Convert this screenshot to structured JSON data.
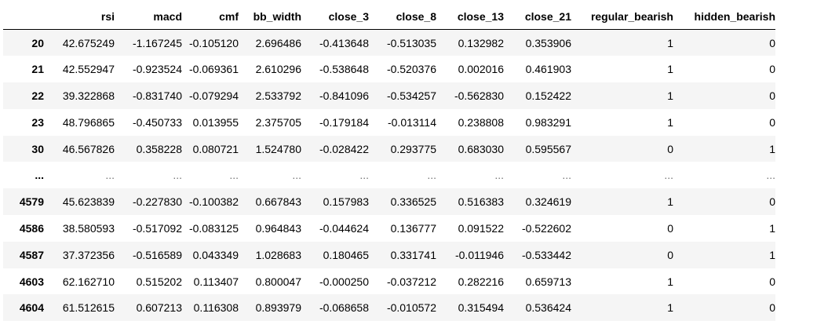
{
  "dataframe": {
    "columns": [
      "",
      "rsi",
      "macd",
      "cmf",
      "bb_width",
      "close_3",
      "close_8",
      "close_13",
      "close_21",
      "regular_bearish",
      "hidden_bearish"
    ],
    "rows": [
      [
        "20",
        "42.675249",
        "-1.167245",
        "-0.105120",
        "2.696486",
        "-0.413648",
        "-0.513035",
        "0.132982",
        "0.353906",
        "1",
        "0"
      ],
      [
        "21",
        "42.552947",
        "-0.923524",
        "-0.069361",
        "2.610296",
        "-0.538648",
        "-0.520376",
        "0.002016",
        "0.461903",
        "1",
        "0"
      ],
      [
        "22",
        "39.322868",
        "-0.831740",
        "-0.079294",
        "2.533792",
        "-0.841096",
        "-0.534257",
        "-0.562830",
        "0.152422",
        "1",
        "0"
      ],
      [
        "23",
        "48.796865",
        "-0.450733",
        "0.013955",
        "2.375705",
        "-0.179184",
        "-0.013114",
        "0.238808",
        "0.983291",
        "1",
        "0"
      ],
      [
        "30",
        "46.567826",
        "0.358228",
        "0.080721",
        "1.524780",
        "-0.028422",
        "0.293775",
        "0.683030",
        "0.595567",
        "0",
        "1"
      ],
      [
        "...",
        "...",
        "...",
        "...",
        "...",
        "...",
        "...",
        "...",
        "...",
        "...",
        "..."
      ],
      [
        "4579",
        "45.623839",
        "-0.227830",
        "-0.100382",
        "0.667843",
        "0.157983",
        "0.336525",
        "0.516383",
        "0.324619",
        "1",
        "0"
      ],
      [
        "4586",
        "38.580593",
        "-0.517092",
        "-0.083125",
        "0.964843",
        "-0.044624",
        "0.136777",
        "0.091522",
        "-0.522602",
        "0",
        "1"
      ],
      [
        "4587",
        "37.372356",
        "-0.516589",
        "0.043349",
        "1.028683",
        "0.180465",
        "0.331741",
        "-0.011946",
        "-0.533442",
        "0",
        "1"
      ],
      [
        "4603",
        "62.162710",
        "0.515202",
        "0.113407",
        "0.800047",
        "-0.000250",
        "-0.037212",
        "0.282216",
        "0.659713",
        "1",
        "0"
      ],
      [
        "4604",
        "61.512615",
        "0.607213",
        "0.116308",
        "0.893979",
        "-0.068658",
        "-0.010572",
        "0.315494",
        "0.536424",
        "1",
        "0"
      ]
    ]
  },
  "colors": {
    "row_stripe": "#f5f5f5",
    "ellipsis_text": "#777777",
    "header_rule": "#000000"
  }
}
